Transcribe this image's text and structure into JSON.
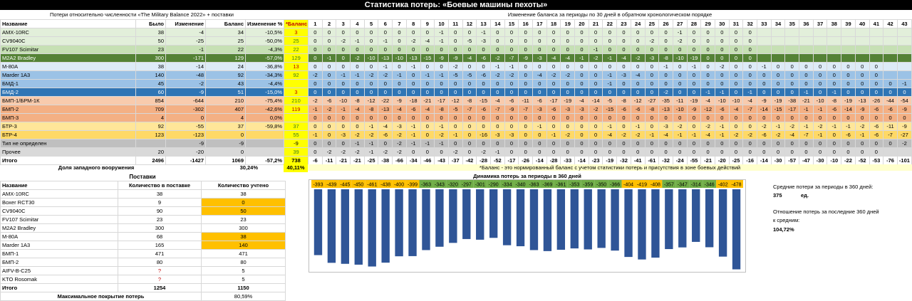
{
  "title": "Статистика потерь: «Боевые машины пехоты»",
  "losses_header": "Потери относительно численности «The Military Balance 2022» + поставки",
  "balance_period_header": "Изменение баланса за периоды по 30 дней в обратном хронологическом порядке",
  "columns": {
    "name": "Название",
    "was": "Было",
    "change": "Изменение",
    "balance": "Баланс",
    "change_pct": "Изменение %",
    "star_balance": "*Баланс"
  },
  "period_numbers": [
    "1",
    "2",
    "3",
    "4",
    "5",
    "6",
    "7",
    "8",
    "9",
    "10",
    "11",
    "12",
    "13",
    "14",
    "15",
    "16",
    "17",
    "18",
    "19",
    "20",
    "21",
    "22",
    "23",
    "24",
    "25",
    "26",
    "27",
    "28",
    "29",
    "30",
    "31",
    "32",
    "33",
    "34",
    "35",
    "36",
    "37",
    "38",
    "39",
    "40",
    "41",
    "42",
    "43"
  ],
  "rows": [
    {
      "name": "AMX-10RC",
      "was": "38",
      "change": "-4",
      "balance": "34",
      "pct": "-10,5%",
      "star": "3",
      "bg": "#e2efda",
      "sbg": "#ffff00",
      "sc": "#c00000",
      "periods": [
        "0",
        "0",
        "0",
        "0",
        "0",
        "0",
        "0",
        "0",
        "0",
        "-1",
        "0",
        "0",
        "-1",
        "0",
        "0",
        "0",
        "0",
        "0",
        "0",
        "0",
        "0",
        "0",
        "0",
        "0",
        "0",
        "0",
        "-1",
        "0",
        "0",
        "0",
        "0",
        "0",
        "",
        "",
        "",
        "",
        "",
        "",
        "",
        "",
        "",
        "",
        ""
      ]
    },
    {
      "name": "CV9040C",
      "was": "50",
      "change": "-25",
      "balance": "25",
      "pct": "-50,0%",
      "star": "25",
      "bg": "#e2efda",
      "sbg": "#ffff00",
      "sc": "#3a7d1f",
      "periods": [
        "0",
        "0",
        "-2",
        "-1",
        "0",
        "-1",
        "0",
        "-2",
        "-4",
        "-1",
        "0",
        "-5",
        "-3",
        "0",
        "0",
        "0",
        "0",
        "0",
        "0",
        "0",
        "0",
        "0",
        "0",
        "0",
        "-2",
        "0",
        "-2",
        "0",
        "0",
        "0",
        "0",
        "0",
        "",
        "",
        "",
        "",
        "",
        "",
        "",
        "",
        "",
        "",
        ""
      ]
    },
    {
      "name": "FV107 Scimitar",
      "was": "23",
      "change": "-1",
      "balance": "22",
      "pct": "-4,3%",
      "star": "22",
      "bg": "#c6e0b4",
      "sbg": "#ffff00",
      "sc": "#3a7d1f",
      "periods": [
        "0",
        "0",
        "0",
        "0",
        "0",
        "0",
        "0",
        "0",
        "0",
        "0",
        "0",
        "0",
        "0",
        "0",
        "0",
        "0",
        "0",
        "0",
        "0",
        "0",
        "-1",
        "0",
        "0",
        "0",
        "0",
        "0",
        "0",
        "0",
        "0",
        "0",
        "0",
        "0",
        "",
        "",
        "",
        "",
        "",
        "",
        "",
        "",
        "",
        "",
        ""
      ]
    },
    {
      "name": "M2A2 Bradley",
      "was": "300",
      "change": "-171",
      "balance": "129",
      "pct": "-57,0%",
      "star": "129",
      "bg": "#548235",
      "sbg": "#ffff00",
      "sc": "#3a7d1f",
      "periods": [
        "0",
        "-1",
        "0",
        "-2",
        "-10",
        "-13",
        "-10",
        "-13",
        "-15",
        "-9",
        "-9",
        "-4",
        "-6",
        "-2",
        "-7",
        "-9",
        "-3",
        "-4",
        "-4",
        "-1",
        "-2",
        "-1",
        "-4",
        "-2",
        "-3",
        "-8",
        "-10",
        "-19",
        "0",
        "0",
        "0",
        "0",
        "",
        "",
        "",
        "",
        "",
        "",
        "",
        "",
        "",
        "",
        ""
      ]
    },
    {
      "name": "M-80A",
      "was": "38",
      "change": "-14",
      "balance": "24",
      "pct": "-36,8%",
      "star": "13",
      "bg": "#ddebf7",
      "sbg": "#ffff00",
      "sc": "#c00000",
      "periods": [
        "0",
        "0",
        "0",
        "0",
        "0",
        "-1",
        "0",
        "-1",
        "0",
        "0",
        "-2",
        "0",
        "0",
        "-1",
        "-1",
        "0",
        "0",
        "0",
        "0",
        "0",
        "0",
        "0",
        "0",
        "0",
        "0",
        "-1",
        "0",
        "-1",
        "0",
        "-2",
        "0",
        "0",
        "-1",
        "0",
        "0",
        "0",
        "0",
        "0",
        "0",
        "0",
        "0",
        "",
        ""
      ]
    },
    {
      "name": "Marder 1A3",
      "was": "140",
      "change": "-48",
      "balance": "92",
      "pct": "-34,3%",
      "star": "92",
      "bg": "#9bc2e6",
      "sbg": "#ffff00",
      "sc": "#3a7d1f",
      "periods": [
        "-2",
        "0",
        "-1",
        "-1",
        "-2",
        "-2",
        "-1",
        "0",
        "-1",
        "-1",
        "-5",
        "-5",
        "-6",
        "-2",
        "-2",
        "0",
        "-4",
        "-2",
        "-2",
        "0",
        "0",
        "-1",
        "-3",
        "-4",
        "0",
        "0",
        "0",
        "0",
        "0",
        "0",
        "0",
        "0",
        "0",
        "0",
        "0",
        "0",
        "0",
        "0",
        "0",
        "0",
        "0",
        "",
        ""
      ]
    },
    {
      "name": "БМД-1",
      "was": "45",
      "change": "-2",
      "balance": "43",
      "pct": "-4,4%",
      "star": "",
      "bg": "#9bc2e6",
      "sbg": "#ffff00",
      "sc": "#000",
      "periods": [
        "0",
        "0",
        "0",
        "0",
        "0",
        "0",
        "0",
        "0",
        "0",
        "0",
        "0",
        "0",
        "0",
        "0",
        "0",
        "0",
        "0",
        "0",
        "0",
        "0",
        "0",
        "-1",
        "0",
        "0",
        "0",
        "0",
        "0",
        "0",
        "0",
        "0",
        "0",
        "0",
        "0",
        "0",
        "0",
        "0",
        "0",
        "0",
        "0",
        "0",
        "0",
        "0",
        "-1"
      ]
    },
    {
      "name": "БМД-2",
      "was": "60",
      "change": "-9",
      "balance": "51",
      "pct": "-15,0%",
      "star": "3",
      "bg": "#2f75b5",
      "sbg": "#ffff00",
      "sc": "#c00000",
      "periods": [
        "0",
        "0",
        "0",
        "0",
        "0",
        "0",
        "0",
        "0",
        "0",
        "0",
        "0",
        "0",
        "0",
        "0",
        "0",
        "0",
        "0",
        "0",
        "0",
        "0",
        "0",
        "0",
        "0",
        "0",
        "0",
        "-2",
        "0",
        "0",
        "-1",
        "-1",
        "0",
        "-1",
        "0",
        "0",
        "0",
        "-1",
        "0",
        "-1",
        "0",
        "0",
        "0",
        "0",
        "0"
      ]
    },
    {
      "name": "БМП-1/БРМ-1К",
      "was": "854",
      "change": "-644",
      "balance": "210",
      "pct": "-75,4%",
      "star": "210",
      "bg": "#f8cbad",
      "sbg": "#ffff00",
      "sc": "#3a7d1f",
      "periods": [
        "-2",
        "-6",
        "-10",
        "-8",
        "-12",
        "-22",
        "-9",
        "-18",
        "-21",
        "-17",
        "-12",
        "-8",
        "-15",
        "-4",
        "-6",
        "-11",
        "-6",
        "-17",
        "-19",
        "-4",
        "-14",
        "-5",
        "-8",
        "-12",
        "-27",
        "-35",
        "-11",
        "-19",
        "-4",
        "-10",
        "-10",
        "-4",
        "-9",
        "-19",
        "-38",
        "-21",
        "-10",
        "-8",
        "-19",
        "-13",
        "-26",
        "-44",
        "-54"
      ]
    },
    {
      "name": "БМП-2",
      "was": "709",
      "change": "-302",
      "balance": "407",
      "pct": "-42,6%",
      "star": "119",
      "bg": "#f4b084",
      "sbg": "#ffff00",
      "sc": "#c00000",
      "periods": [
        "-1",
        "-2",
        "-1",
        "-4",
        "-8",
        "-13",
        "-4",
        "-6",
        "-4",
        "-8",
        "-5",
        "-7",
        "-6",
        "-7",
        "-9",
        "-7",
        "-3",
        "-6",
        "-3",
        "-3",
        "-2",
        "-15",
        "-6",
        "-6",
        "-8",
        "-13",
        "-10",
        "-9",
        "-12",
        "-6",
        "-4",
        "-7",
        "-14",
        "-15",
        "-17",
        "-1",
        "-1",
        "-6",
        "-14",
        "-9",
        "-6",
        "-6",
        "-9"
      ]
    },
    {
      "name": "БМП-3",
      "was": "4",
      "change": "0",
      "balance": "4",
      "pct": "0,0%",
      "star": "",
      "bg": "#f4b084",
      "sbg": "#ffff00",
      "sc": "#000",
      "periods": [
        "0",
        "0",
        "0",
        "0",
        "0",
        "0",
        "0",
        "0",
        "0",
        "0",
        "0",
        "0",
        "0",
        "0",
        "0",
        "0",
        "0",
        "0",
        "0",
        "0",
        "0",
        "0",
        "0",
        "0",
        "0",
        "0",
        "0",
        "0",
        "0",
        "0",
        "0",
        "0",
        "0",
        "0",
        "0",
        "0",
        "0",
        "0",
        "0",
        "0",
        "0",
        "0",
        "0"
      ]
    },
    {
      "name": "БТР-3",
      "was": "92",
      "change": "-55",
      "balance": "37",
      "pct": "-59,8%",
      "star": "37",
      "bg": "#ffe699",
      "sbg": "#ffff00",
      "sc": "#3a7d1f",
      "periods": [
        "0",
        "0",
        "0",
        "0",
        "-1",
        "-4",
        "-3",
        "-1",
        "0",
        "-1",
        "0",
        "0",
        "0",
        "0",
        "0",
        "0",
        "-1",
        "0",
        "0",
        "0",
        "0",
        "-1",
        "0",
        "-1",
        "0",
        "-3",
        "-2",
        "0",
        "-2",
        "-1",
        "0",
        "0",
        "-2",
        "-1",
        "-2",
        "-1",
        "-2",
        "-1",
        "-1",
        "-2",
        "-6",
        "-11",
        "-9"
      ]
    },
    {
      "name": "БТР-4",
      "was": "123",
      "change": "-123",
      "balance": "0",
      "pct": "",
      "star": "55",
      "bg": "#ffd966",
      "sbg": "#ffff00",
      "sc": "#3a7d1f",
      "periods": [
        "-1",
        "0",
        "-3",
        "-2",
        "-2",
        "-6",
        "-2",
        "-1",
        "0",
        "-2",
        "-1",
        "0",
        "-16",
        "-3",
        "-3",
        "0",
        "0",
        "-1",
        "-2",
        "0",
        "0",
        "-4",
        "-2",
        "-2",
        "-1",
        "-4",
        "-1",
        "-1",
        "-4",
        "-1",
        "-2",
        "-2",
        "-6",
        "-2",
        "-4",
        "-7",
        "-1",
        "0",
        "-6",
        "-1",
        "-6",
        "-7",
        "-27"
      ]
    },
    {
      "name": "Тип не определен",
      "was": "",
      "change": "-9",
      "balance": "-9",
      "pct": "",
      "star": "-9",
      "bg": "#bfbfbf",
      "sbg": "#ffff00",
      "sc": "#000",
      "periods": [
        "0",
        "0",
        "0",
        "-1",
        "-1",
        "0",
        "-2",
        "-1",
        "-1",
        "-1",
        "0",
        "0",
        "0",
        "0",
        "0",
        "0",
        "0",
        "0",
        "0",
        "0",
        "0",
        "0",
        "0",
        "0",
        "0",
        "0",
        "0",
        "0",
        "0",
        "0",
        "0",
        "0",
        "0",
        "0",
        "0",
        "0",
        "0",
        "0",
        "0",
        "0",
        "0",
        "0",
        "-2"
      ]
    },
    {
      "name": "Прочее",
      "was": "20",
      "change": "-20",
      "balance": "0",
      "pct": "",
      "star": "39",
      "bg": "#d9d9d9",
      "sbg": "#ffff00",
      "sc": "#3a7d1f",
      "periods": [
        "0",
        "-2",
        "-2",
        "-2",
        "-1",
        "-2",
        "-2",
        "0",
        "0",
        "0",
        "-2",
        "0",
        "-2",
        "-1",
        "0",
        "0",
        "0",
        "0",
        "0",
        "0",
        "0",
        "0",
        "0",
        "0",
        "0",
        "0",
        "0",
        "0",
        "0",
        "0",
        "0",
        "0",
        "0",
        "0",
        "0",
        "0",
        "0",
        "0",
        "0",
        "0",
        "0",
        "",
        ""
      ]
    }
  ],
  "total": {
    "label": "Итого",
    "was": "2496",
    "change": "-1427",
    "balance": "1069",
    "pct": "-57,2%",
    "star": "738",
    "periods": [
      "-6",
      "-11",
      "-21",
      "-21",
      "-25",
      "-38",
      "-66",
      "-34",
      "-46",
      "-43",
      "-37",
      "-42",
      "-28",
      "-52",
      "-17",
      "-26",
      "-14",
      "-28",
      "-33",
      "-14",
      "-23",
      "-19",
      "-32",
      "-41",
      "-61",
      "-32",
      "-24",
      "-55",
      "-21",
      "-20",
      "-25",
      "-16",
      "-14",
      "-30",
      "-57",
      "-47",
      "-30",
      "-10",
      "-22",
      "-52",
      "-53",
      "-76",
      "-101"
    ]
  },
  "western_share": {
    "label": "Доля западного вооружения",
    "value": "30,24%",
    "star_value": "40,11%"
  },
  "star_note": "*Баланс - это нормированный баланс с учетом статистики потерь и присутствия в зоне боевых действий",
  "deliveries": {
    "title": "Поставки",
    "headers": {
      "name": "Название",
      "qty": "Количество в поставке",
      "counted": "Количество учтено"
    },
    "rows": [
      {
        "name": "AMX-10RC",
        "qty": "38",
        "counted": "38",
        "hl": false,
        "q": false
      },
      {
        "name": "Boxer RCT30",
        "qty": "9",
        "counted": "0",
        "hl": true,
        "q": false
      },
      {
        "name": "CV9040C",
        "qty": "90",
        "counted": "50",
        "hl": true,
        "q": false
      },
      {
        "name": "FV107 Scimitar",
        "qty": "23",
        "counted": "23",
        "hl": false,
        "q": false
      },
      {
        "name": "M2A2 Bradley",
        "qty": "300",
        "counted": "300",
        "hl": false,
        "q": false
      },
      {
        "name": "M-80A",
        "qty": "68",
        "counted": "38",
        "hl": true,
        "q": false
      },
      {
        "name": "Marder 1A3",
        "qty": "165",
        "counted": "140",
        "hl": true,
        "q": false
      },
      {
        "name": "БМП-1",
        "qty": "471",
        "counted": "471",
        "hl": false,
        "q": false
      },
      {
        "name": "БМП-2",
        "qty": "80",
        "counted": "80",
        "hl": false,
        "q": false
      },
      {
        "name": "AIFV-B-C25",
        "qty": "?",
        "counted": "5",
        "hl": false,
        "q": true
      },
      {
        "name": "KTO Rosomak",
        "qty": "?",
        "counted": "5",
        "hl": false,
        "q": true
      }
    ],
    "total": {
      "label": "Итого",
      "qty": "1254",
      "counted": "1150"
    },
    "coverage": {
      "label": "Максимальное покрытие потерь",
      "value": "80,59%"
    }
  },
  "chart_title": "Динамика потерь за периоды в 360 дней",
  "chart_data": {
    "type": "bar",
    "title": "Динамика потерь за периоды в 360 дней",
    "values": [
      -393,
      -439,
      -445,
      -450,
      -461,
      -438,
      -400,
      -399,
      -363,
      -343,
      -320,
      -297,
      -301,
      -290,
      -334,
      -340,
      -363,
      -369,
      -361,
      -353,
      -359,
      -350,
      -366,
      -404,
      -419,
      -408,
      -357,
      -347,
      -314,
      -346,
      -402,
      -478
    ],
    "labels": [
      "-393",
      "-439",
      "-445",
      "-450",
      "-461",
      "-438",
      "-400",
      "-399",
      "-363",
      "-343",
      "-320",
      "-297",
      "-301",
      "-290",
      "-334",
      "-340",
      "-363",
      "-369",
      "-361",
      "-353",
      "-359",
      "-350",
      "-366",
      "-404",
      "-419",
      "-408",
      "-357",
      "-347",
      "-314",
      "-346",
      "-402",
      "-478"
    ],
    "label_colors": [
      "#ffc000",
      "#ffc000",
      "#ffc000",
      "#ffc000",
      "#ffc000",
      "#ffc000",
      "#ffc000",
      "#ffc000",
      "#70ad47",
      "#70ad47",
      "#70ad47",
      "#70ad47",
      "#70ad47",
      "#70ad47",
      "#70ad47",
      "#70ad47",
      "#70ad47",
      "#70ad47",
      "#70ad47",
      "#70ad47",
      "#70ad47",
      "#70ad47",
      "#70ad47",
      "#ffc000",
      "#ffc000",
      "#ffc000",
      "#70ad47",
      "#70ad47",
      "#70ad47",
      "#70ad47",
      "#ffc000",
      "#ffc000"
    ],
    "bar_color": "#2f5597",
    "ylim": [
      -480,
      0
    ]
  },
  "stats": {
    "avg_label": "Средние потери за периоды в 360 дней:",
    "avg_value": "375",
    "avg_unit": "ед.",
    "ratio_label_1": "Отношение потерь за последние 360 дней",
    "ratio_label_2": "к средним:",
    "ratio_value": "104,72%"
  }
}
